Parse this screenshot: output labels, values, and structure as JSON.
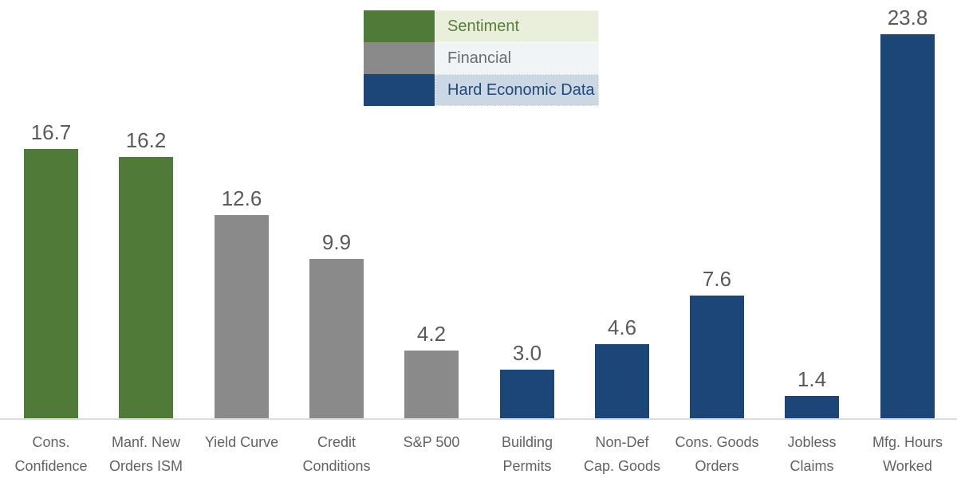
{
  "chart_data": {
    "type": "bar",
    "title": "",
    "xlabel": "",
    "ylabel": "",
    "ylim": [
      0,
      23.8
    ],
    "grid": false,
    "legend_position": "top-center",
    "categories": [
      "Cons. Confidence",
      "Manf. New Orders ISM",
      "Yield Curve",
      "Credit Conditions",
      "S&P 500",
      "Building Permits",
      "Non-Def Cap. Goods",
      "Cons. Goods Orders",
      "Jobless Claims",
      "Mfg. Hours Worked"
    ],
    "category_lines": [
      [
        "Cons.",
        "Confidence"
      ],
      [
        "Manf. New",
        "Orders ISM"
      ],
      [
        "Yield Curve"
      ],
      [
        "Credit",
        "Conditions"
      ],
      [
        "S&P 500"
      ],
      [
        "Building",
        "Permits"
      ],
      [
        "Non-Def",
        "Cap. Goods"
      ],
      [
        "Cons. Goods",
        "Orders"
      ],
      [
        "Jobless",
        "Claims"
      ],
      [
        "Mfg. Hours",
        "Worked"
      ]
    ],
    "values": [
      16.7,
      16.2,
      12.6,
      9.9,
      4.2,
      3.0,
      4.6,
      7.6,
      1.4,
      23.8
    ],
    "value_labels": [
      "16.7",
      "16.2",
      "12.6",
      "9.9",
      "4.2",
      "3.0",
      "4.6",
      "7.6",
      "1.4",
      "23.8"
    ],
    "groups": [
      "sentiment",
      "sentiment",
      "financial",
      "financial",
      "financial",
      "hard",
      "hard",
      "hard",
      "hard",
      "hard"
    ],
    "group_colors": {
      "sentiment": "#4f7a38",
      "financial": "#8a8a8a",
      "hard": "#1b4677"
    },
    "legend": [
      {
        "label": "Sentiment",
        "swatch_color": "#4f7a38",
        "text_color": "#577e38",
        "row_bg": "#e9efda"
      },
      {
        "label": "Financial",
        "swatch_color": "#8a8a8a",
        "text_color": "#6c6c6c",
        "row_bg": "#f0f4f7"
      },
      {
        "label": "Hard Economic Data",
        "swatch_color": "#1b4677",
        "text_color": "#1d4a78",
        "row_bg": "#cbd8e4"
      }
    ]
  },
  "style_colors": {
    "value_label": "#5a5a5a",
    "category_label": "#626262",
    "axis_line": "#dcdcdc"
  }
}
